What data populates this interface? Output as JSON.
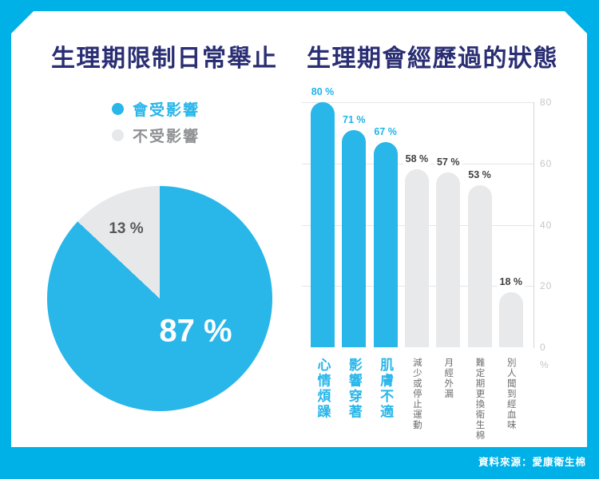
{
  "page": {
    "background_color": "#00b1e8",
    "card_color": "#ffffff",
    "source_caption": "資料來源：愛康衛生棉"
  },
  "chart_data": [
    {
      "type": "pie",
      "title": "生理期限制日常舉止",
      "title_color": "#2a2e73",
      "labels": [
        "會受影響",
        "不受影響"
      ],
      "values": [
        87,
        13
      ],
      "value_labels": [
        "87 %",
        "13 %"
      ],
      "colors": [
        "#29b6e9",
        "#e7e8ea"
      ],
      "major_label_color": "#ffffff",
      "minor_label_color": "#57585a",
      "legend_position": "top",
      "start_angle_deg": 0,
      "direction": "clockwise",
      "legend": [
        {
          "label": "會受影響",
          "swatch": "#29b6e9",
          "text_color": "#29b6e9"
        },
        {
          "label": "不受影響",
          "swatch": "#e7e8ea",
          "text_color": "#8f9194"
        }
      ]
    },
    {
      "type": "bar",
      "title": "生理期會經歷過的狀態",
      "title_color": "#2a2e73",
      "categories": [
        "心情煩躁",
        "影響穿著",
        "肌膚不適",
        "減少或停止運動",
        "月經外漏",
        "難定期更換衛生棉",
        "別人聞到經血味"
      ],
      "values": [
        80,
        71,
        67,
        58,
        57,
        53,
        18
      ],
      "value_labels": [
        "80 %",
        "71 %",
        "67 %",
        "58 %",
        "57 %",
        "53 %",
        "18 %"
      ],
      "highlighted": [
        true,
        true,
        true,
        false,
        false,
        false,
        false
      ],
      "highlight_color": "#29b6e9",
      "muted_color": "#e8e9eb",
      "value_label_color_highlight": "#1db4e9",
      "value_label_color_muted": "#414042",
      "category_color_highlight": "#29b6e9",
      "category_color_muted": "#6d6e71",
      "ylim": [
        0,
        80
      ],
      "yticks": [
        80,
        60,
        40,
        20,
        0
      ],
      "axis_unit": "%",
      "axis_side": "right",
      "grid": true,
      "gridline_color": "#e4e5e7",
      "axis_line_color": "#d5d6d8",
      "tick_label_color": "#c5c7c9"
    }
  ]
}
